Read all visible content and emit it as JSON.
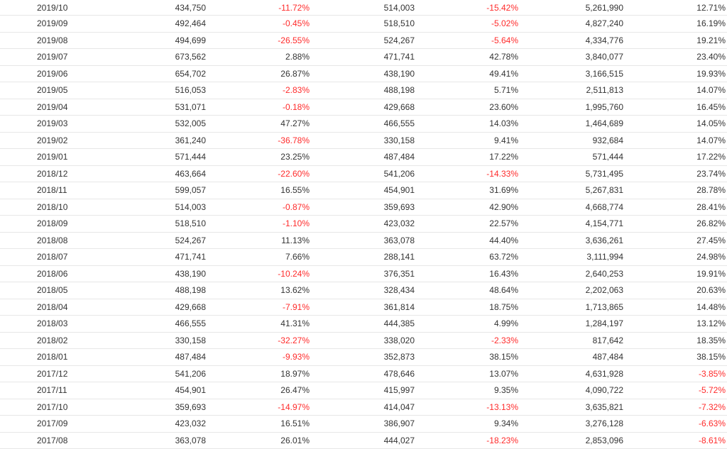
{
  "colors": {
    "negative": "#ff2b2b",
    "text": "#333333",
    "divider": "#e7e7e7"
  },
  "table": {
    "rows": [
      {
        "month": "2019/10",
        "v1": "434,750",
        "p1": "-11.72%",
        "v2": "514,003",
        "p2": "-15.42%",
        "v3": "5,261,990",
        "p3": "12.71%"
      },
      {
        "month": "2019/09",
        "v1": "492,464",
        "p1": "-0.45%",
        "v2": "518,510",
        "p2": "-5.02%",
        "v3": "4,827,240",
        "p3": "16.19%"
      },
      {
        "month": "2019/08",
        "v1": "494,699",
        "p1": "-26.55%",
        "v2": "524,267",
        "p2": "-5.64%",
        "v3": "4,334,776",
        "p3": "19.21%"
      },
      {
        "month": "2019/07",
        "v1": "673,562",
        "p1": "2.88%",
        "v2": "471,741",
        "p2": "42.78%",
        "v3": "3,840,077",
        "p3": "23.40%"
      },
      {
        "month": "2019/06",
        "v1": "654,702",
        "p1": "26.87%",
        "v2": "438,190",
        "p2": "49.41%",
        "v3": "3,166,515",
        "p3": "19.93%"
      },
      {
        "month": "2019/05",
        "v1": "516,053",
        "p1": "-2.83%",
        "v2": "488,198",
        "p2": "5.71%",
        "v3": "2,511,813",
        "p3": "14.07%"
      },
      {
        "month": "2019/04",
        "v1": "531,071",
        "p1": "-0.18%",
        "v2": "429,668",
        "p2": "23.60%",
        "v3": "1,995,760",
        "p3": "16.45%"
      },
      {
        "month": "2019/03",
        "v1": "532,005",
        "p1": "47.27%",
        "v2": "466,555",
        "p2": "14.03%",
        "v3": "1,464,689",
        "p3": "14.05%"
      },
      {
        "month": "2019/02",
        "v1": "361,240",
        "p1": "-36.78%",
        "v2": "330,158",
        "p2": "9.41%",
        "v3": "932,684",
        "p3": "14.07%"
      },
      {
        "month": "2019/01",
        "v1": "571,444",
        "p1": "23.25%",
        "v2": "487,484",
        "p2": "17.22%",
        "v3": "571,444",
        "p3": "17.22%"
      },
      {
        "month": "2018/12",
        "v1": "463,664",
        "p1": "-22.60%",
        "v2": "541,206",
        "p2": "-14.33%",
        "v3": "5,731,495",
        "p3": "23.74%"
      },
      {
        "month": "2018/11",
        "v1": "599,057",
        "p1": "16.55%",
        "v2": "454,901",
        "p2": "31.69%",
        "v3": "5,267,831",
        "p3": "28.78%"
      },
      {
        "month": "2018/10",
        "v1": "514,003",
        "p1": "-0.87%",
        "v2": "359,693",
        "p2": "42.90%",
        "v3": "4,668,774",
        "p3": "28.41%"
      },
      {
        "month": "2018/09",
        "v1": "518,510",
        "p1": "-1.10%",
        "v2": "423,032",
        "p2": "22.57%",
        "v3": "4,154,771",
        "p3": "26.82%"
      },
      {
        "month": "2018/08",
        "v1": "524,267",
        "p1": "11.13%",
        "v2": "363,078",
        "p2": "44.40%",
        "v3": "3,636,261",
        "p3": "27.45%"
      },
      {
        "month": "2018/07",
        "v1": "471,741",
        "p1": "7.66%",
        "v2": "288,141",
        "p2": "63.72%",
        "v3": "3,111,994",
        "p3": "24.98%"
      },
      {
        "month": "2018/06",
        "v1": "438,190",
        "p1": "-10.24%",
        "v2": "376,351",
        "p2": "16.43%",
        "v3": "2,640,253",
        "p3": "19.91%"
      },
      {
        "month": "2018/05",
        "v1": "488,198",
        "p1": "13.62%",
        "v2": "328,434",
        "p2": "48.64%",
        "v3": "2,202,063",
        "p3": "20.63%"
      },
      {
        "month": "2018/04",
        "v1": "429,668",
        "p1": "-7.91%",
        "v2": "361,814",
        "p2": "18.75%",
        "v3": "1,713,865",
        "p3": "14.48%"
      },
      {
        "month": "2018/03",
        "v1": "466,555",
        "p1": "41.31%",
        "v2": "444,385",
        "p2": "4.99%",
        "v3": "1,284,197",
        "p3": "13.12%"
      },
      {
        "month": "2018/02",
        "v1": "330,158",
        "p1": "-32.27%",
        "v2": "338,020",
        "p2": "-2.33%",
        "v3": "817,642",
        "p3": "18.35%"
      },
      {
        "month": "2018/01",
        "v1": "487,484",
        "p1": "-9.93%",
        "v2": "352,873",
        "p2": "38.15%",
        "v3": "487,484",
        "p3": "38.15%"
      },
      {
        "month": "2017/12",
        "v1": "541,206",
        "p1": "18.97%",
        "v2": "478,646",
        "p2": "13.07%",
        "v3": "4,631,928",
        "p3": "-3.85%"
      },
      {
        "month": "2017/11",
        "v1": "454,901",
        "p1": "26.47%",
        "v2": "415,997",
        "p2": "9.35%",
        "v3": "4,090,722",
        "p3": "-5.72%"
      },
      {
        "month": "2017/10",
        "v1": "359,693",
        "p1": "-14.97%",
        "v2": "414,047",
        "p2": "-13.13%",
        "v3": "3,635,821",
        "p3": "-7.32%"
      },
      {
        "month": "2017/09",
        "v1": "423,032",
        "p1": "16.51%",
        "v2": "386,907",
        "p2": "9.34%",
        "v3": "3,276,128",
        "p3": "-6.63%"
      },
      {
        "month": "2017/08",
        "v1": "363,078",
        "p1": "26.01%",
        "v2": "444,027",
        "p2": "-18.23%",
        "v3": "2,853,096",
        "p3": "-8.61%"
      }
    ]
  }
}
